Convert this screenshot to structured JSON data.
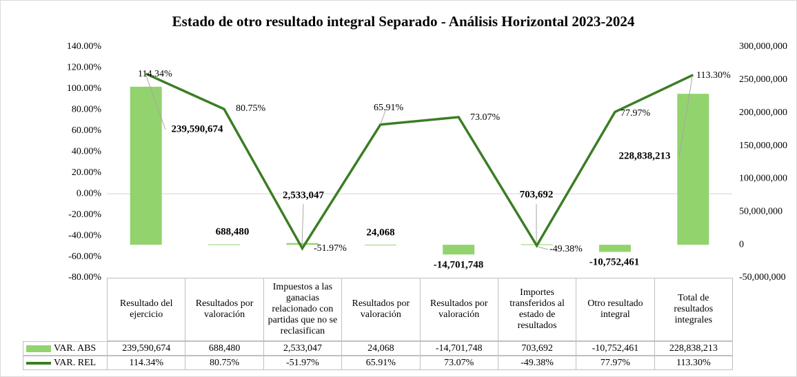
{
  "chart_data": {
    "type": "combo",
    "title": "Estado de otro resultado integral Separado - Análisis Horizontal 2023-2024",
    "categories": [
      "Resultado del ejercicio",
      "Resultados por valoración",
      "Impuestos a las ganacias relacionado con partidas que no se reclasifican",
      "Resultados por valoración",
      "Resultados por valoración",
      "Importes transferidos al estado de resultados",
      "Otro resultado integral",
      "Total de resultados integrales"
    ],
    "series": [
      {
        "name": "VAR. ABS",
        "type": "bar",
        "axis": "y2",
        "color": "#92d36e",
        "values": [
          239590674,
          688480,
          2533047,
          24068,
          -14701748,
          703692,
          -10752461,
          228838213
        ],
        "value_labels": [
          "239,590,674",
          "688,480",
          "2,533,047",
          "24,068",
          "-14,701,748",
          "703,692",
          "-10,752,461",
          "228,838,213"
        ]
      },
      {
        "name": "VAR. REL",
        "type": "line",
        "color": "#3b7d23",
        "values": [
          114.34,
          80.75,
          -51.97,
          65.91,
          73.07,
          -49.38,
          77.97,
          113.3
        ],
        "value_labels": [
          "114.34%",
          "80.75%",
          "-51.97%",
          "65.91%",
          "73.07%",
          "-49.38%",
          "77.97%",
          "113.30%"
        ]
      }
    ],
    "ylim": [
      -80,
      140
    ],
    "yticks": [
      {
        "value": -80,
        "label": "-80.00%"
      },
      {
        "value": -60,
        "label": "-60.00%"
      },
      {
        "value": -40,
        "label": "-40.00%"
      },
      {
        "value": -20,
        "label": "-20.00%"
      },
      {
        "value": 0,
        "label": "0.00%"
      },
      {
        "value": 20,
        "label": "20.00%"
      },
      {
        "value": 40,
        "label": "40.00%"
      },
      {
        "value": 60,
        "label": "60.00%"
      },
      {
        "value": 80,
        "label": "80.00%"
      },
      {
        "value": 100,
        "label": "100.00%"
      },
      {
        "value": 120,
        "label": "120.00%"
      },
      {
        "value": 140,
        "label": "140.00%"
      }
    ],
    "y2lim": [
      -50000000,
      300000000
    ],
    "y2ticks": [
      {
        "value": -50000000,
        "label": "-50,000,000"
      },
      0,
      {
        "value": 50000000,
        "label": "50,000,000"
      },
      {
        "value": 100000000,
        "label": "100,000,000"
      },
      {
        "value": 150000000,
        "label": "150,000,000"
      },
      {
        "value": 200000000,
        "label": "200,000,000"
      },
      {
        "value": 250000000,
        "label": "250,000,000"
      },
      {
        "value": 300000000,
        "label": "300,000,000"
      }
    ],
    "grid": false
  }
}
